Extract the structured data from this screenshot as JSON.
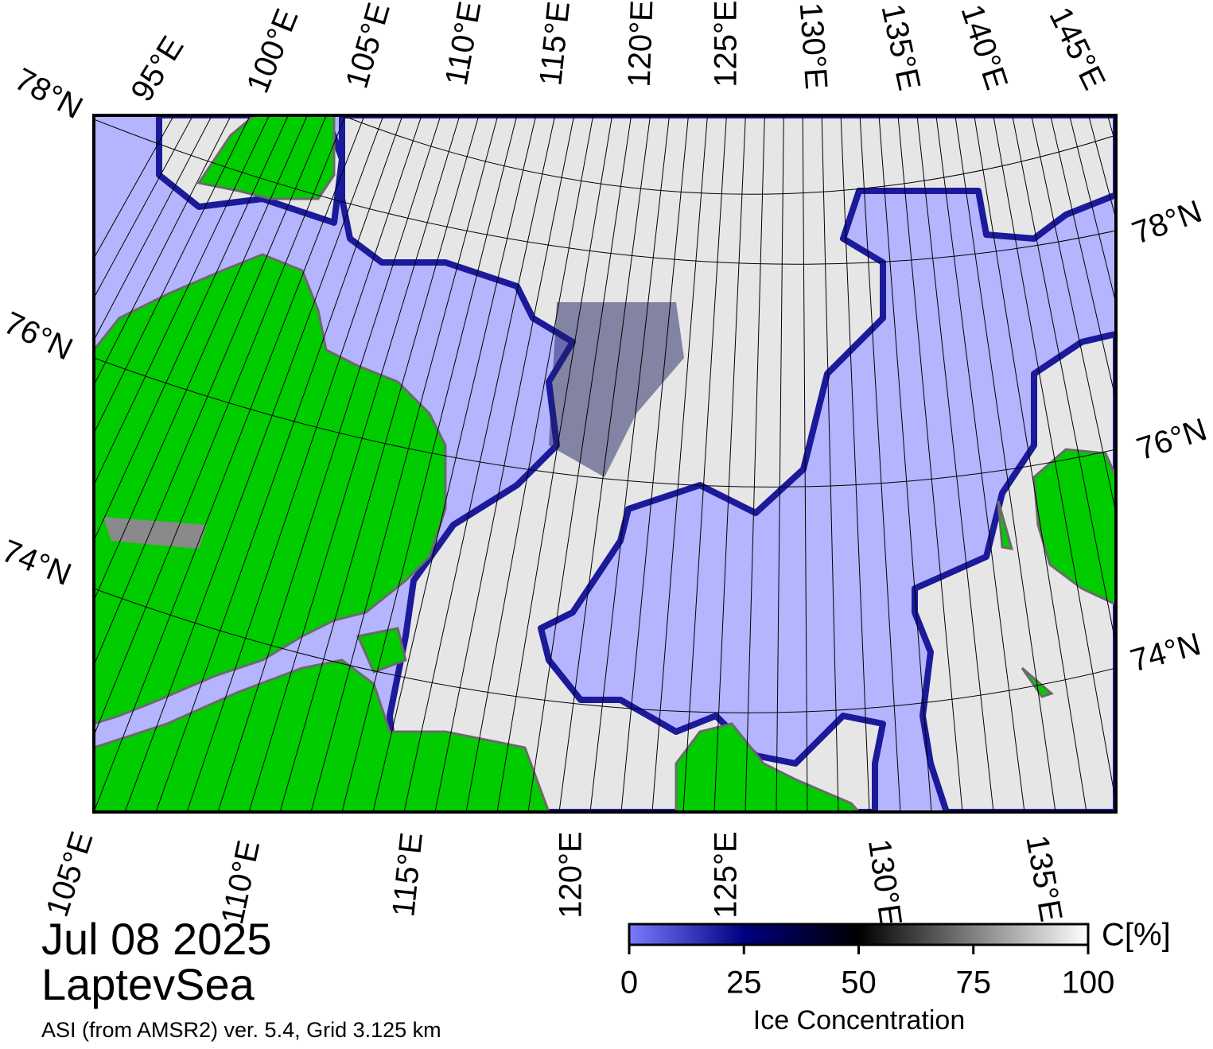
{
  "map": {
    "top_labels": [
      "95°E",
      "100°E",
      "105°E",
      "110°E",
      "115°E",
      "120°E",
      "125°E",
      "130°E",
      "135°E",
      "140°E",
      "145°E"
    ],
    "left_labels": [
      "78°N",
      "76°N",
      "74°N"
    ],
    "right_labels": [
      "78°N",
      "76°N",
      "74°N"
    ],
    "bottom_labels": [
      "105°E",
      "110°E",
      "115°E",
      "120°E",
      "125°E",
      "130°E",
      "135°E"
    ]
  },
  "footer": {
    "date": "Jul 08 2025",
    "region": "LaptevSea",
    "source": "ASI (from AMSR2) ver. 5.4,  Grid 3.125 km"
  },
  "colorbar": {
    "lim": [
      0,
      100
    ],
    "ticks": [
      0,
      25,
      50,
      75,
      100
    ],
    "colors": [
      "#7b7bff",
      "#000080",
      "#000000",
      "#808080",
      "#ffffff"
    ],
    "unit": "C[%]",
    "label": "Ice Concentration"
  }
}
